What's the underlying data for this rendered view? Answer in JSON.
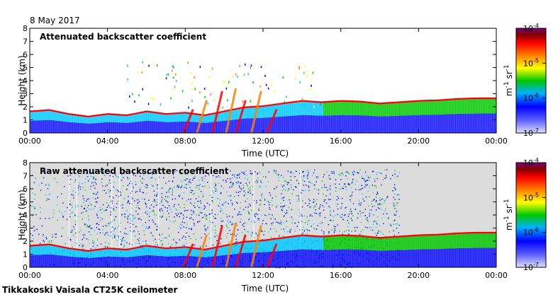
{
  "date_label": "8 May 2017",
  "footer": "Tikkakoski Vaisala CT25K ceilometer",
  "colors": {
    "clear": "#dcdcdc",
    "scale": [
      "#d8d8ff",
      "#0000ff",
      "#00c8ff",
      "#00c800",
      "#ffff00",
      "#ff8000",
      "#ff0000",
      "#800000",
      "#800080"
    ]
  },
  "chart_data": [
    {
      "type": "heatmap",
      "title": "Attenuated backscatter coefficient",
      "xlabel": "Time (UTC)",
      "ylabel": "Height (km)",
      "xticks": [
        "00:00",
        "04:00",
        "08:00",
        "12:00",
        "16:00",
        "20:00",
        "00:00"
      ],
      "xlim_hours": [
        0,
        24
      ],
      "ylim_km": [
        0,
        8
      ],
      "yticks": [
        "0",
        "1",
        "2",
        "3",
        "4",
        "5",
        "6",
        "7",
        "8"
      ],
      "colorbar": {
        "labels": [
          "10",
          "10",
          "10",
          "10"
        ],
        "exponents": [
          "-7",
          "-6",
          "-5",
          "-4"
        ],
        "unit_main": "m",
        "unit_exp1": "-1",
        "unit_mid": " sr",
        "unit_exp2": "-1",
        "scale": "log"
      },
      "layer_top_km": [
        [
          0,
          1.7
        ],
        [
          1,
          1.8
        ],
        [
          2,
          1.5
        ],
        [
          3,
          1.3
        ],
        [
          4,
          1.5
        ],
        [
          5,
          1.4
        ],
        [
          6,
          1.7
        ],
        [
          7,
          1.5
        ],
        [
          8,
          1.6
        ],
        [
          9,
          1.4
        ],
        [
          10,
          1.7
        ],
        [
          11,
          2.0
        ],
        [
          12,
          2.1
        ],
        [
          13,
          2.3
        ],
        [
          14,
          2.5
        ],
        [
          15,
          2.4
        ],
        [
          16,
          2.5
        ],
        [
          17,
          2.45
        ],
        [
          18,
          2.3
        ],
        [
          19,
          2.4
        ],
        [
          20,
          2.5
        ],
        [
          21,
          2.55
        ],
        [
          22,
          2.65
        ],
        [
          23,
          2.7
        ],
        [
          24,
          2.7
        ]
      ]
    },
    {
      "type": "heatmap",
      "title": "Raw attenuated backscatter coefficient",
      "xlabel": "Time (UTC)",
      "ylabel": "Height (km)",
      "xticks": [
        "00:00",
        "04:00",
        "08:00",
        "12:00",
        "16:00",
        "20:00",
        "00:00"
      ],
      "xlim_hours": [
        0,
        24
      ],
      "ylim_km": [
        0,
        8
      ],
      "yticks": [
        "0",
        "1",
        "2",
        "3",
        "4",
        "5",
        "6",
        "7",
        "8"
      ],
      "noise_top_km": 7.5,
      "colorbar": {
        "labels": [
          "10",
          "10",
          "10",
          "10"
        ],
        "exponents": [
          "-7",
          "-6",
          "-5",
          "-4"
        ],
        "unit_main": "m",
        "unit_exp1": "-1",
        "unit_mid": " sr",
        "unit_exp2": "-1",
        "scale": "log"
      },
      "layer_top_km": [
        [
          0,
          1.7
        ],
        [
          1,
          1.8
        ],
        [
          2,
          1.5
        ],
        [
          3,
          1.3
        ],
        [
          4,
          1.5
        ],
        [
          5,
          1.4
        ],
        [
          6,
          1.7
        ],
        [
          7,
          1.5
        ],
        [
          8,
          1.6
        ],
        [
          9,
          1.4
        ],
        [
          10,
          1.7
        ],
        [
          11,
          2.0
        ],
        [
          12,
          2.1
        ],
        [
          13,
          2.3
        ],
        [
          14,
          2.5
        ],
        [
          15,
          2.4
        ],
        [
          16,
          2.5
        ],
        [
          17,
          2.45
        ],
        [
          18,
          2.3
        ],
        [
          19,
          2.4
        ],
        [
          20,
          2.5
        ],
        [
          21,
          2.55
        ],
        [
          22,
          2.65
        ],
        [
          23,
          2.7
        ],
        [
          24,
          2.7
        ]
      ]
    }
  ]
}
